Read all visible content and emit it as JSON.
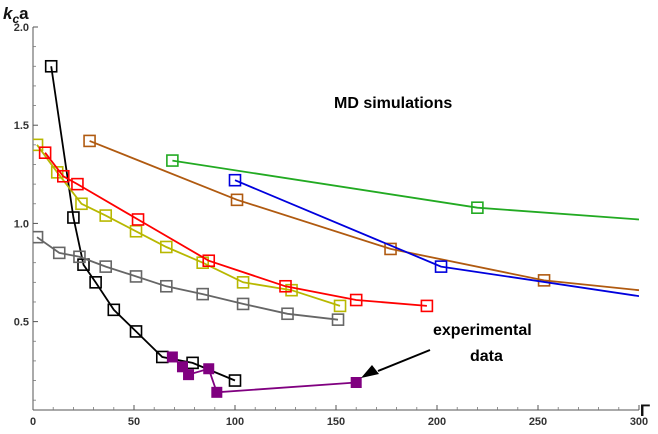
{
  "chart_data": {
    "type": "line",
    "xlabel": "Γ",
    "ylabel": {
      "main": "k",
      "sub": "c",
      "tail": "a"
    },
    "xlim": [
      0,
      300
    ],
    "ylim": [
      0.05,
      2.0
    ],
    "x_ticks": [
      0,
      50,
      100,
      150,
      200,
      250,
      300
    ],
    "x_tick_labels": [
      "0",
      "50",
      "100",
      "150",
      "200",
      "250",
      "300"
    ],
    "y_ticks": [
      0.5,
      1.0,
      1.5,
      2.0
    ],
    "y_tick_labels": [
      "0.5",
      "1.0",
      "1.5",
      "2.0"
    ],
    "grid": false,
    "annotations": [
      {
        "text": "MD simulations"
      },
      {
        "text": "experimental"
      },
      {
        "text": "data"
      }
    ],
    "series": [
      {
        "color": "#000000",
        "marker": "open-square",
        "x": [
          9,
          20,
          25,
          31,
          40,
          51,
          64,
          79,
          100
        ],
        "y": [
          1.8,
          1.03,
          0.79,
          0.7,
          0.56,
          0.45,
          0.32,
          0.29,
          0.2
        ]
      },
      {
        "color": "#666666",
        "marker": "open-square",
        "x": [
          2,
          13,
          23,
          36,
          51,
          66,
          84,
          104,
          126,
          151
        ],
        "y": [
          0.93,
          0.85,
          0.83,
          0.78,
          0.73,
          0.68,
          0.64,
          0.59,
          0.54,
          0.51
        ]
      },
      {
        "color": "#b8b800",
        "marker": "open-square",
        "x": [
          2,
          12,
          24,
          36,
          51,
          66,
          84,
          104,
          128,
          152
        ],
        "y": [
          1.4,
          1.26,
          1.1,
          1.04,
          0.96,
          0.88,
          0.8,
          0.7,
          0.66,
          0.58
        ]
      },
      {
        "color": "#ff0000",
        "marker": "open-square",
        "x": [
          6,
          15,
          22,
          52,
          87,
          125,
          160,
          195
        ],
        "y": [
          1.36,
          1.24,
          1.2,
          1.02,
          0.81,
          0.68,
          0.61,
          0.58
        ]
      },
      {
        "color": "#b05a10",
        "marker": "open-square",
        "x": [
          28,
          101,
          177,
          253,
          300
        ],
        "y": [
          1.42,
          1.12,
          0.87,
          0.71,
          0.66
        ]
      },
      {
        "color": "#0000dd",
        "marker": "open-square",
        "x": [
          100,
          202,
          300
        ],
        "y": [
          1.22,
          0.78,
          0.63
        ]
      },
      {
        "color": "#22aa22",
        "marker": "open-square",
        "x": [
          69,
          220,
          300
        ],
        "y": [
          1.32,
          1.08,
          1.02
        ]
      },
      {
        "color": "#800080",
        "marker": "filled-square",
        "x": [
          69,
          74,
          77,
          87,
          91,
          160
        ],
        "y": [
          0.32,
          0.27,
          0.23,
          0.26,
          0.14,
          0.19
        ]
      }
    ]
  }
}
